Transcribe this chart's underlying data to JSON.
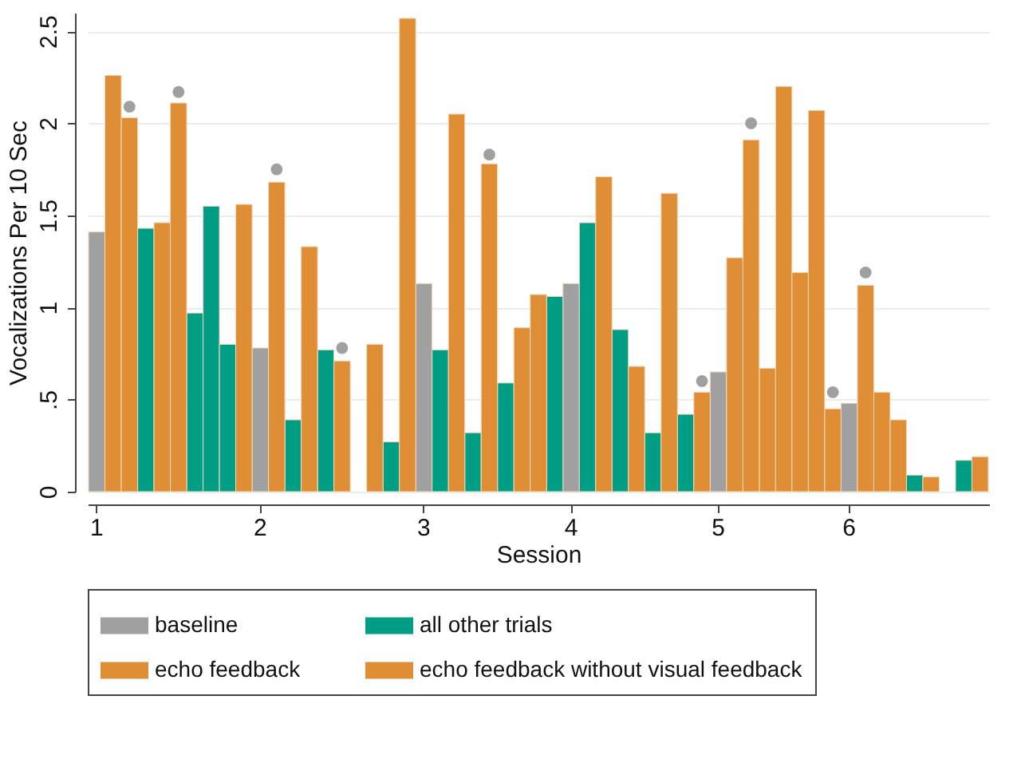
{
  "chart_data": {
    "type": "bar",
    "xlabel": "Session",
    "ylabel": "Vocalizations Per 10 Sec",
    "categories": [
      "1",
      null,
      null,
      null,
      null,
      null,
      null,
      null,
      null,
      null,
      "2",
      null,
      null,
      null,
      null,
      null,
      null,
      null,
      null,
      null,
      "3",
      null,
      null,
      null,
      null,
      null,
      null,
      null,
      null,
      "4",
      null,
      null,
      null,
      null,
      null,
      null,
      null,
      null,
      "5",
      null,
      null,
      null,
      null,
      null,
      null,
      null,
      "6",
      null,
      null,
      null,
      null,
      null,
      null,
      null,
      null
    ],
    "ylim": [
      0,
      2.6
    ],
    "yticks": [
      0,
      {
        "value": 0.5,
        "label": ".5"
      },
      1,
      1.5,
      2,
      2.5
    ],
    "grid": "y",
    "legend": "bottom",
    "series": [
      {
        "name": "baseline",
        "color": "#a0a0a0",
        "values": [
          1.41,
          null,
          null,
          null,
          null,
          null,
          null,
          null,
          null,
          null,
          0.78,
          null,
          null,
          null,
          null,
          null,
          null,
          null,
          null,
          null,
          1.13,
          null,
          null,
          null,
          null,
          null,
          null,
          null,
          null,
          1.13,
          null,
          null,
          null,
          null,
          null,
          null,
          null,
          null,
          0.65,
          null,
          null,
          null,
          null,
          null,
          null,
          null,
          0.48,
          null,
          null,
          null,
          null,
          null,
          null,
          null,
          null
        ]
      },
      {
        "name": "all other trials",
        "color": "#009e84",
        "values": [
          null,
          null,
          null,
          1.43,
          null,
          null,
          0.97,
          1.55,
          0.8,
          null,
          null,
          null,
          0.39,
          null,
          0.77,
          null,
          null,
          null,
          0.27,
          null,
          null,
          0.77,
          null,
          0.32,
          null,
          0.59,
          null,
          null,
          1.06,
          null,
          1.46,
          null,
          0.88,
          null,
          0.32,
          null,
          0.42,
          null,
          null,
          null,
          null,
          null,
          null,
          null,
          null,
          null,
          null,
          null,
          null,
          null,
          0.09,
          null,
          null,
          0.17,
          null
        ]
      },
      {
        "name": "echo feedback",
        "color": "#e08e35",
        "values": [
          null,
          2.26,
          null,
          null,
          1.46,
          null,
          null,
          null,
          null,
          1.56,
          null,
          null,
          null,
          1.33,
          null,
          null,
          null,
          0.8,
          null,
          2.57,
          null,
          null,
          2.05,
          null,
          null,
          null,
          0.89,
          1.07,
          null,
          null,
          null,
          1.71,
          null,
          0.68,
          null,
          1.62,
          null,
          null,
          null,
          1.27,
          null,
          0.67,
          2.2,
          1.19,
          2.07,
          null,
          null,
          null,
          0.54,
          0.39,
          null,
          0.08,
          null,
          null,
          0.19
        ]
      },
      {
        "name": "echo feedback without visual feedback",
        "color": "#e08e35",
        "values": [
          null,
          null,
          2.03,
          null,
          null,
          2.11,
          null,
          null,
          null,
          null,
          null,
          1.68,
          null,
          null,
          null,
          0.71,
          null,
          null,
          null,
          null,
          null,
          null,
          null,
          null,
          1.78,
          null,
          null,
          null,
          null,
          null,
          null,
          null,
          null,
          null,
          null,
          null,
          null,
          0.54,
          null,
          null,
          1.91,
          null,
          null,
          null,
          null,
          0.45,
          null,
          1.12,
          null,
          null,
          null,
          null,
          null,
          null,
          null
        ]
      },
      {
        "type": "scatter",
        "marker": "circle",
        "color": "#a0a0a0",
        "values": [
          null,
          null,
          2.09,
          null,
          null,
          2.17,
          null,
          null,
          null,
          null,
          null,
          1.75,
          null,
          null,
          null,
          0.78,
          null,
          null,
          null,
          null,
          null,
          null,
          null,
          null,
          1.83,
          null,
          null,
          null,
          null,
          null,
          null,
          null,
          null,
          null,
          null,
          null,
          null,
          0.6,
          null,
          null,
          2.0,
          null,
          null,
          null,
          null,
          0.54,
          null,
          1.19,
          null,
          null,
          null,
          null,
          null,
          null,
          null
        ]
      }
    ]
  }
}
